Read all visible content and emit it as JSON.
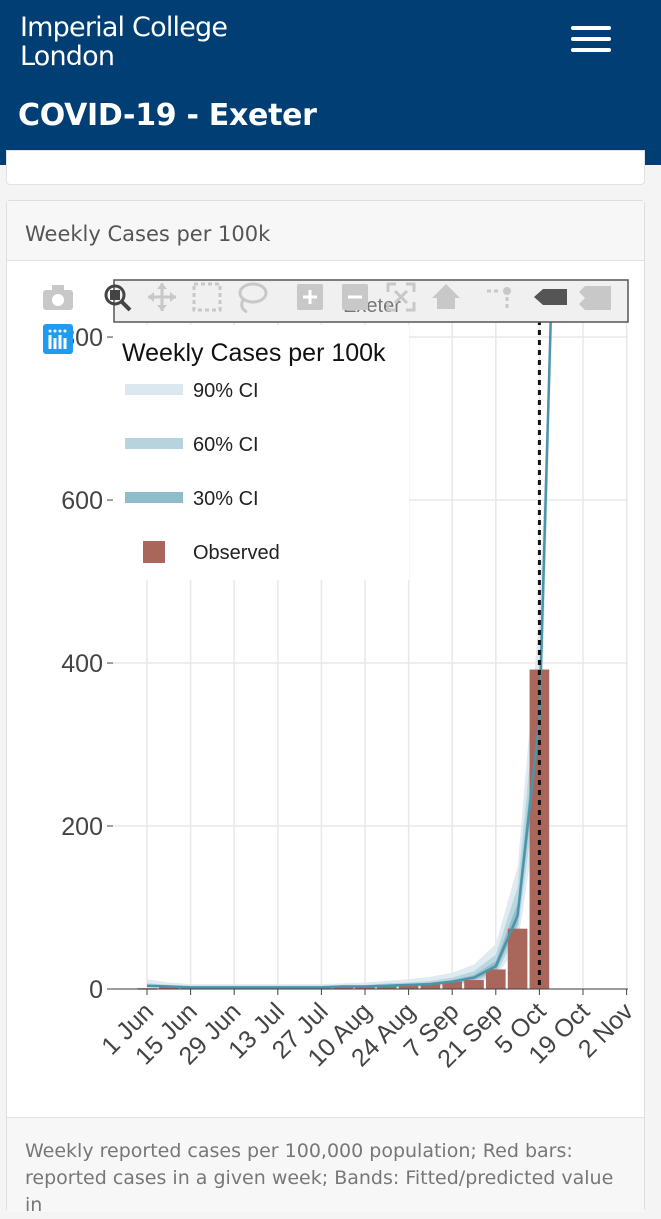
{
  "header": {
    "logo_line1": "Imperial College",
    "logo_line2": "London",
    "page_title": "COVID-19 - Exeter"
  },
  "card": {
    "title": "Weekly Cases per 100k",
    "footer": "Weekly reported cases per 100,000 population; Red bars: reported cases in a given week; Bands: Fitted/predicted value in"
  },
  "toolbar": {
    "icons": [
      "camera-icon",
      "zoom-icon",
      "pan-icon",
      "box-select-icon",
      "lasso-select-icon",
      "zoom-in-icon",
      "zoom-out-icon",
      "autoscale-icon",
      "reset-axes-icon",
      "toggle-spike-lines-icon",
      "hover-closest-icon",
      "hover-compare-icon",
      "plotly-logo-icon"
    ],
    "hover_label": "Exeter"
  },
  "colors": {
    "observed": "#a9665b",
    "ci90": "#dbe9ee",
    "ci60": "#b6d4de",
    "ci30": "#8fbcc9",
    "fit_line": "#4b95aa",
    "header_bg": "#003e74"
  },
  "chart_data": {
    "type": "bar",
    "title": "",
    "legend_title": "Weekly Cases per 100k",
    "legend_position": "top-left",
    "xlabel": "",
    "ylabel": "",
    "ylim": [
      0,
      870
    ],
    "yticks": [
      0,
      200,
      400,
      600,
      800
    ],
    "x_tick_labels": [
      "1 Jun",
      "15 Jun",
      "29 Jun",
      "13 Jul",
      "27 Jul",
      "10 Aug",
      "24 Aug",
      "7 Sep",
      "21 Sep",
      "5 Oct",
      "19 Oct",
      "2 Nov"
    ],
    "grid": true,
    "legend": [
      "90% CI",
      "60% CI",
      "30% CI",
      "Observed"
    ],
    "observed": {
      "name": "Observed",
      "weeks": [
        "1 Jun",
        "8 Jun",
        "15 Jun",
        "22 Jun",
        "29 Jun",
        "6 Jul",
        "13 Jul",
        "20 Jul",
        "27 Jul",
        "3 Aug",
        "10 Aug",
        "17 Aug",
        "24 Aug",
        "31 Aug",
        "7 Sep",
        "14 Sep",
        "21 Sep",
        "28 Sep",
        "5 Oct"
      ],
      "values": [
        1,
        2,
        2,
        3,
        2,
        2,
        3,
        2,
        3,
        2,
        3,
        3,
        5,
        6,
        9,
        11,
        24,
        74,
        392
      ]
    },
    "fit": {
      "weeks": [
        "1 Jun",
        "8 Jun",
        "15 Jun",
        "22 Jun",
        "29 Jun",
        "6 Jul",
        "13 Jul",
        "20 Jul",
        "27 Jul",
        "3 Aug",
        "10 Aug",
        "17 Aug",
        "24 Aug",
        "31 Aug",
        "7 Sep",
        "14 Sep",
        "21 Sep",
        "28 Sep",
        "5 Oct",
        "9 Oct"
      ],
      "median": [
        4,
        3,
        2,
        2,
        2,
        2,
        2,
        2,
        2,
        3,
        3,
        4,
        5,
        6,
        9,
        14,
        28,
        90,
        330,
        900
      ],
      "ci30": [
        [
          3,
          5
        ],
        [
          2,
          4
        ],
        [
          2,
          3
        ],
        [
          2,
          3
        ],
        [
          2,
          3
        ],
        [
          2,
          3
        ],
        [
          2,
          3
        ],
        [
          2,
          3
        ],
        [
          2,
          3
        ],
        [
          2,
          4
        ],
        [
          2,
          4
        ],
        [
          3,
          5
        ],
        [
          4,
          6
        ],
        [
          5,
          8
        ],
        [
          7,
          11
        ],
        [
          11,
          17
        ],
        [
          22,
          34
        ],
        [
          80,
          105
        ],
        [
          300,
          360
        ],
        [
          870,
          950
        ]
      ],
      "ci60": [
        [
          2,
          7
        ],
        [
          2,
          5
        ],
        [
          1,
          4
        ],
        [
          1,
          4
        ],
        [
          1,
          4
        ],
        [
          1,
          4
        ],
        [
          1,
          4
        ],
        [
          1,
          4
        ],
        [
          1,
          4
        ],
        [
          1,
          5
        ],
        [
          2,
          5
        ],
        [
          2,
          7
        ],
        [
          3,
          8
        ],
        [
          4,
          10
        ],
        [
          6,
          14
        ],
        [
          9,
          22
        ],
        [
          18,
          42
        ],
        [
          70,
          125
        ],
        [
          270,
          400
        ],
        [
          840,
          1000
        ]
      ],
      "ci90": [
        [
          1,
          12
        ],
        [
          1,
          8
        ],
        [
          1,
          6
        ],
        [
          1,
          6
        ],
        [
          1,
          6
        ],
        [
          1,
          6
        ],
        [
          1,
          6
        ],
        [
          1,
          6
        ],
        [
          1,
          6
        ],
        [
          1,
          7
        ],
        [
          1,
          8
        ],
        [
          1,
          10
        ],
        [
          2,
          12
        ],
        [
          3,
          15
        ],
        [
          4,
          20
        ],
        [
          7,
          30
        ],
        [
          14,
          55
        ],
        [
          55,
          150
        ],
        [
          230,
          460
        ],
        [
          800,
          1100
        ]
      ]
    },
    "annotation": {
      "type": "vertical-dashed-line",
      "x": "5 Oct"
    }
  }
}
